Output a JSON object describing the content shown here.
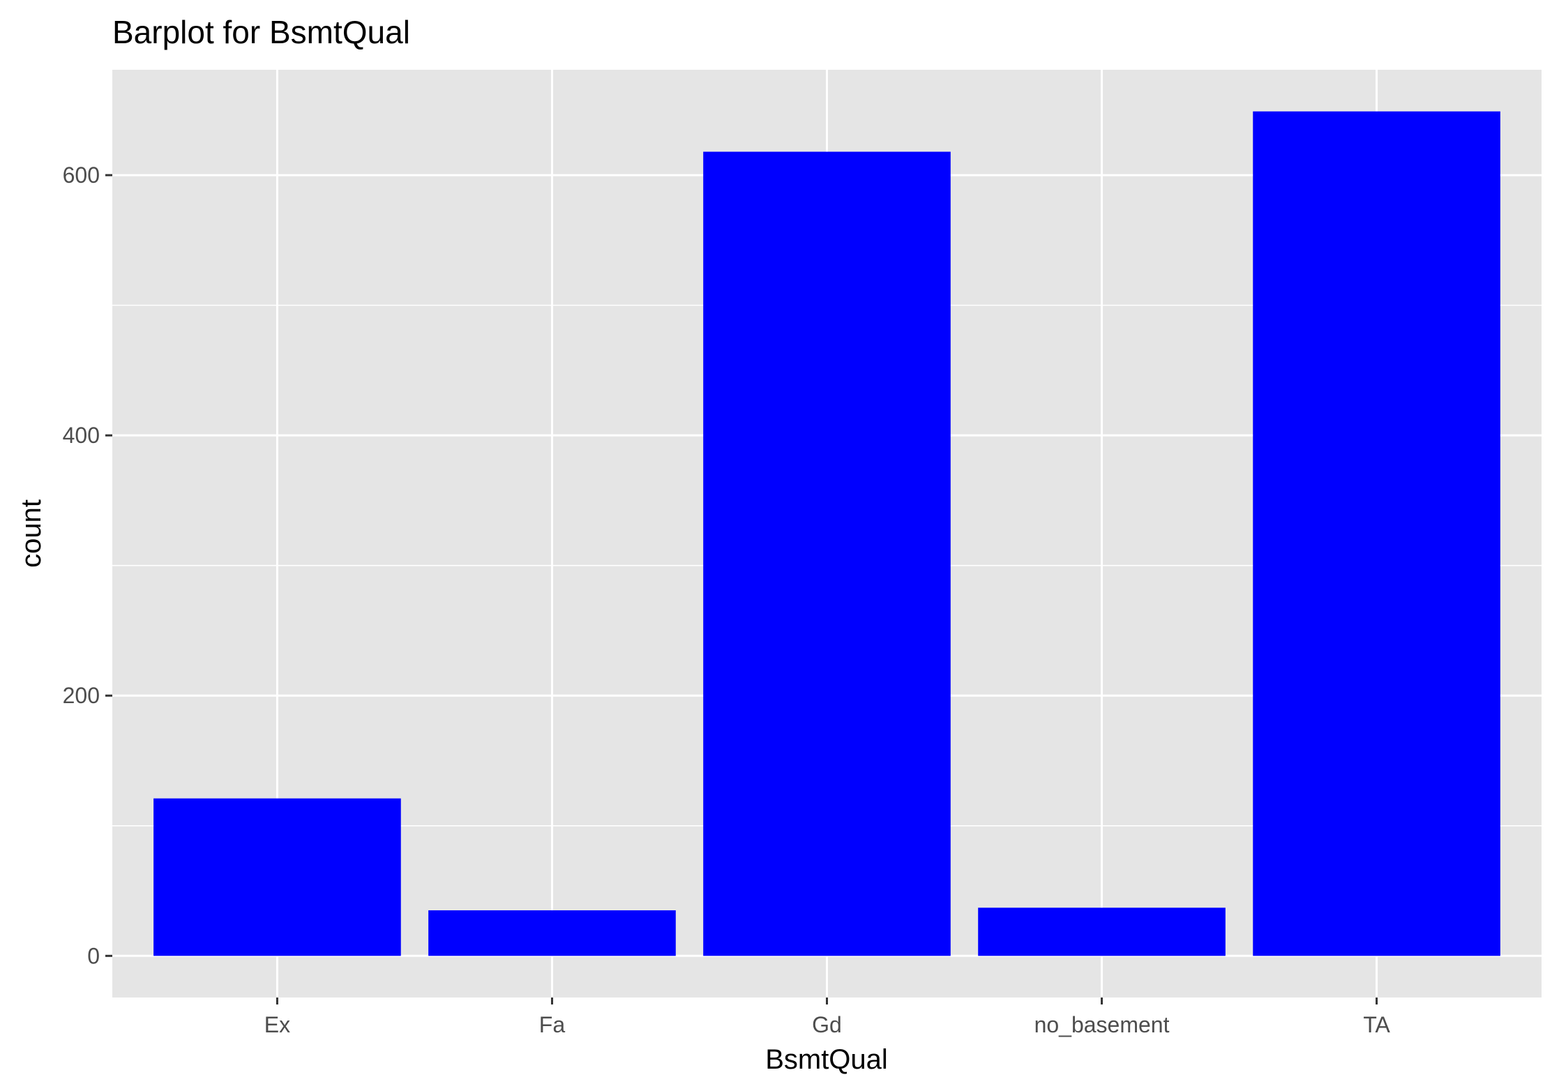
{
  "chart_data": {
    "type": "bar",
    "title": "Barplot for BsmtQual",
    "xlabel": "BsmtQual",
    "ylabel": "count",
    "categories": [
      "Ex",
      "Fa",
      "Gd",
      "no_basement",
      "TA"
    ],
    "values": [
      121,
      35,
      618,
      37,
      649
    ],
    "ylim": [
      -32,
      681
    ],
    "y_ticks": [
      0,
      200,
      400,
      600
    ],
    "y_tick_labels": [
      "0",
      "200",
      "400",
      "600"
    ],
    "grid": true,
    "legend": "none",
    "colors": {
      "bar": "#0000ff",
      "panel": "#e5e5e5",
      "grid": "#ffffff",
      "tick": "#333333",
      "tick_label": "#4d4d4d"
    }
  }
}
